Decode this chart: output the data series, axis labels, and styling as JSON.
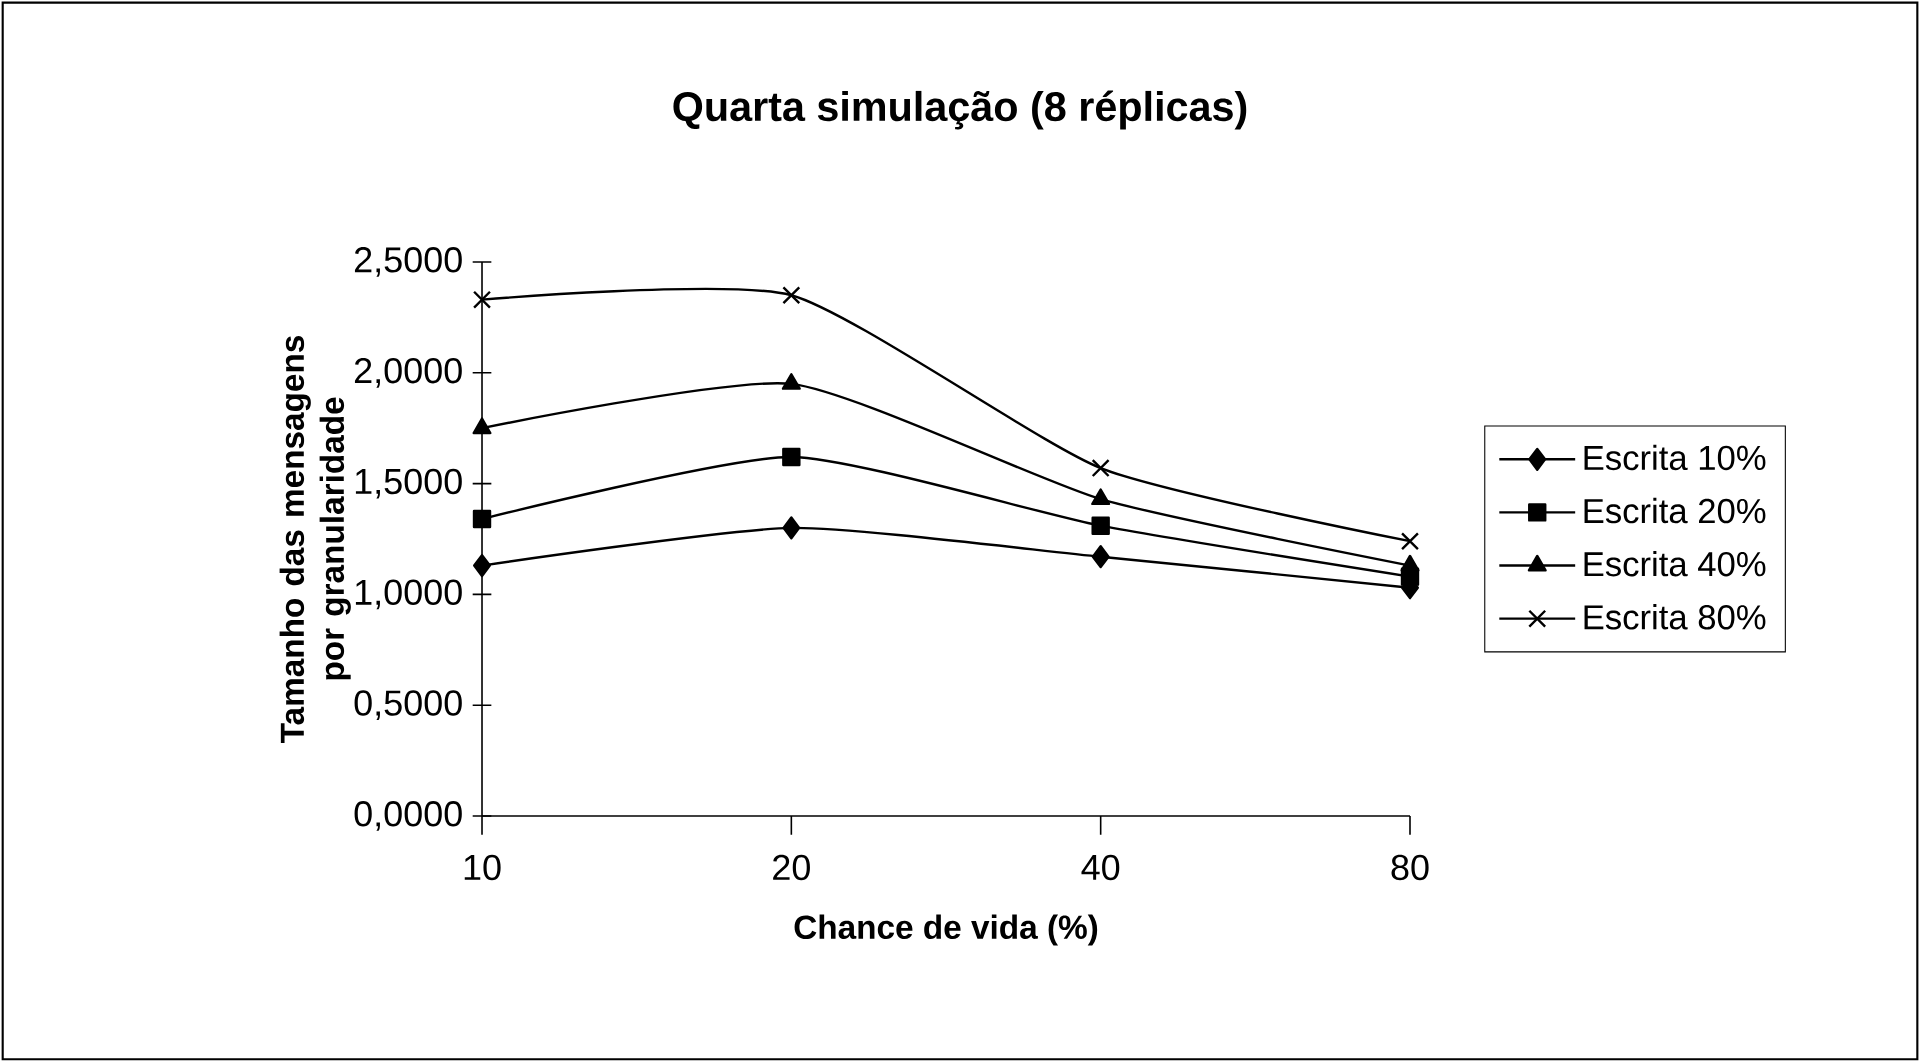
{
  "chart_data": {
    "type": "line",
    "title": "Quarta simulação (8 réplicas)",
    "xlabel": "Chance de vida (%)",
    "ylabel": "Tamanho das mensagens por granularidade",
    "categories": [
      "10",
      "20",
      "40",
      "80"
    ],
    "series": [
      {
        "name": "Escrita 10%",
        "color": "#000000",
        "marker": "diamond",
        "values": [
          1.13,
          1.3,
          1.17,
          1.03
        ]
      },
      {
        "name": "Escrita 20%",
        "color": "#000000",
        "marker": "square",
        "values": [
          1.34,
          1.62,
          1.31,
          1.08
        ]
      },
      {
        "name": "Escrita 40%",
        "color": "#000000",
        "marker": "triangle",
        "values": [
          1.75,
          1.95,
          1.43,
          1.13
        ]
      },
      {
        "name": "Escrita 80%",
        "color": "#000000",
        "marker": "cross",
        "values": [
          2.33,
          2.35,
          1.57,
          1.24
        ]
      }
    ],
    "ylim": [
      0,
      2.5
    ],
    "yticks": [
      {
        "value": 0,
        "label": "0,0000"
      },
      {
        "value": 0.5,
        "label": "0,5000"
      },
      {
        "value": 1,
        "label": "1,0000"
      },
      {
        "value": 1.5,
        "label": "1,5000"
      },
      {
        "value": 2,
        "label": "2,0000"
      },
      {
        "value": 2.5,
        "label": "2,5000"
      }
    ],
    "grid": false,
    "legend": "right"
  }
}
